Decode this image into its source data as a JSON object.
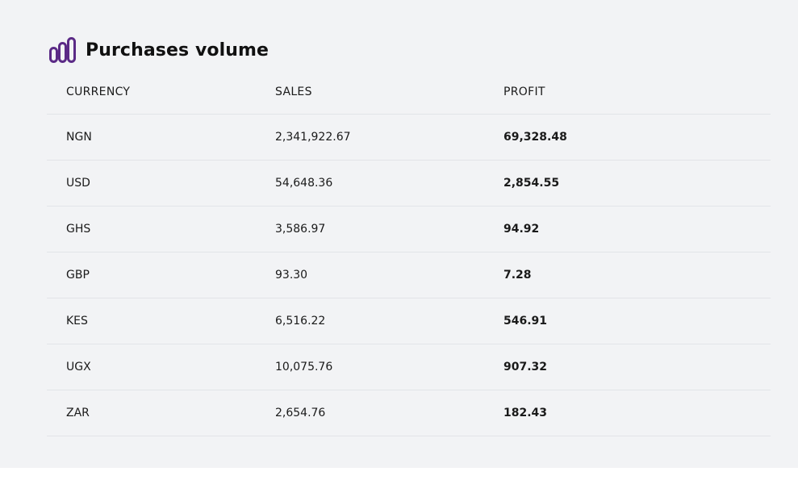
{
  "header": {
    "title": "Purchases volume",
    "icon": "bar-chart-icon"
  },
  "table": {
    "columns": [
      "CURRENCY",
      "SALES",
      "PROFIT"
    ],
    "rows": [
      {
        "currency": "NGN",
        "sales": "2,341,922.67",
        "profit": "69,328.48"
      },
      {
        "currency": "USD",
        "sales": "54,648.36",
        "profit": "2,854.55"
      },
      {
        "currency": "GHS",
        "sales": "3,586.97",
        "profit": "94.92"
      },
      {
        "currency": "GBP",
        "sales": "93.30",
        "profit": "7.28"
      },
      {
        "currency": "KES",
        "sales": "6,516.22",
        "profit": "546.91"
      },
      {
        "currency": "UGX",
        "sales": "10,075.76",
        "profit": "907.32"
      },
      {
        "currency": "ZAR",
        "sales": "2,654.76",
        "profit": "182.43"
      }
    ]
  },
  "colors": {
    "accent": "#5b2a86",
    "panel_background": "#f2f3f5",
    "divider": "#e2e4e8"
  }
}
